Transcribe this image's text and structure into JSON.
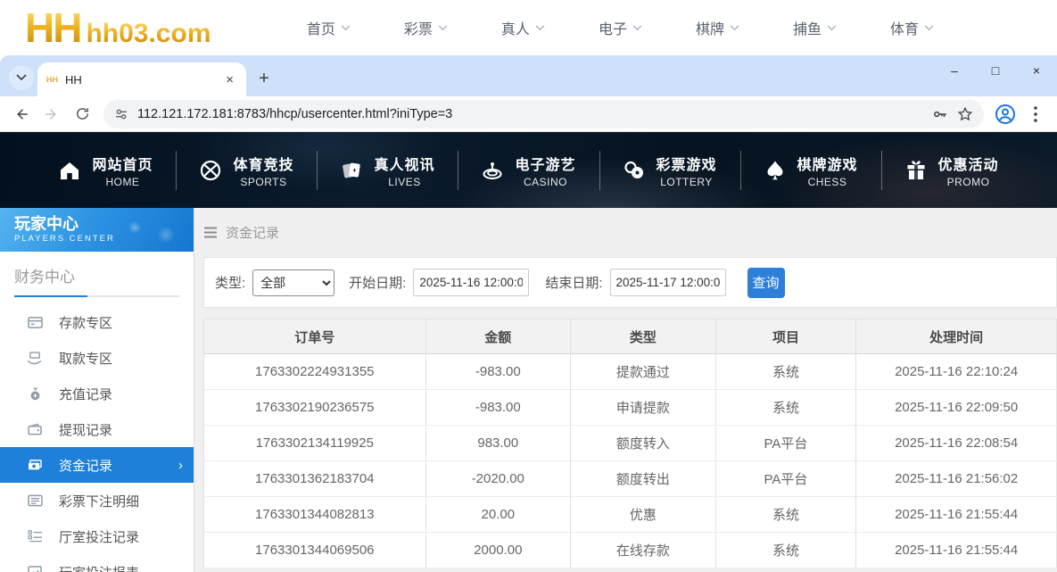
{
  "site_header": {
    "logo_text": "HH",
    "logo_domain": "hh03.com",
    "nav": [
      {
        "label": "首页"
      },
      {
        "label": "彩票"
      },
      {
        "label": "真人"
      },
      {
        "label": "电子"
      },
      {
        "label": "棋牌"
      },
      {
        "label": "捕鱼"
      },
      {
        "label": "体育"
      }
    ]
  },
  "browser": {
    "favicon_text": "HH",
    "tab_title": "HH",
    "url": "112.121.172.181:8783/hhcp/usercenter.html?iniType=3",
    "window_controls": {
      "minimize": "–",
      "maximize": "□",
      "close": "×"
    },
    "new_tab_label": "+",
    "tab_close_label": "×"
  },
  "main_nav": {
    "items": [
      {
        "zh": "网站首页",
        "en": "HOME",
        "icon": "home-icon"
      },
      {
        "zh": "体育竞技",
        "en": "SPORTS",
        "icon": "basketball-icon"
      },
      {
        "zh": "真人视讯",
        "en": "LIVES",
        "icon": "cards-icon"
      },
      {
        "zh": "电子游艺",
        "en": "CASINO",
        "icon": "roulette-icon"
      },
      {
        "zh": "彩票游戏",
        "en": "LOTTERY",
        "icon": "lottery-balls-icon"
      },
      {
        "zh": "棋牌游戏",
        "en": "CHESS",
        "icon": "spade-icon"
      },
      {
        "zh": "优惠活动",
        "en": "PROMO",
        "icon": "gift-icon"
      }
    ]
  },
  "sidebar": {
    "title_zh": "玩家中心",
    "title_en": "PLAYERS CENTER",
    "section_label": "财务中心",
    "items": [
      {
        "label": "存款专区",
        "icon": "deposit-card-icon",
        "selected": false
      },
      {
        "label": "取款专区",
        "icon": "withdraw-hand-icon",
        "selected": false
      },
      {
        "label": "充值记录",
        "icon": "moneybag-icon",
        "selected": false
      },
      {
        "label": "提现记录",
        "icon": "wallet-icon",
        "selected": false
      },
      {
        "label": "资金记录",
        "icon": "banknotes-icon",
        "selected": true
      },
      {
        "label": "彩票下注明细",
        "icon": "ticket-list-icon",
        "selected": false
      },
      {
        "label": "厅室投注记录",
        "icon": "checklist-icon",
        "selected": false
      },
      {
        "label": "玩家投注报表",
        "icon": "report-chart-icon",
        "selected": false
      }
    ],
    "selected_chevron": "›"
  },
  "content": {
    "breadcrumb": "资金记录",
    "filters": {
      "type_label": "类型:",
      "type_value": "全部",
      "start_label": "开始日期:",
      "start_value": "2025-11-16 12:00:00",
      "end_label": "结束日期:",
      "end_value": "2025-11-17 12:00:00",
      "search_button": "查询"
    },
    "table": {
      "headers": [
        "订单号",
        "金额",
        "类型",
        "项目",
        "处理时间"
      ],
      "rows": [
        [
          "1763302224931355",
          "-983.00",
          "提款通过",
          "系统",
          "2025-11-16 22:10:24"
        ],
        [
          "1763302190236575",
          "-983.00",
          "申请提款",
          "系统",
          "2025-11-16 22:09:50"
        ],
        [
          "1763302134119925",
          "983.00",
          "额度转入",
          "PA平台",
          "2025-11-16 22:08:54"
        ],
        [
          "1763301362183704",
          "-2020.00",
          "额度转出",
          "PA平台",
          "2025-11-16 21:56:02"
        ],
        [
          "1763301344082813",
          "20.00",
          "优惠",
          "系统",
          "2025-11-16 21:55:44"
        ],
        [
          "1763301344069506",
          "2000.00",
          "在线存款",
          "系统",
          "2025-11-16 21:55:44"
        ]
      ]
    }
  },
  "colors": {
    "accent_blue": "#1e80d9",
    "button_blue": "#2e7fd9",
    "logo_gold": "#e5a416",
    "tabstrip_blue": "#cfe0fb",
    "dark_nav_bg": "#081625",
    "main_bg": "#f0f0f0"
  }
}
